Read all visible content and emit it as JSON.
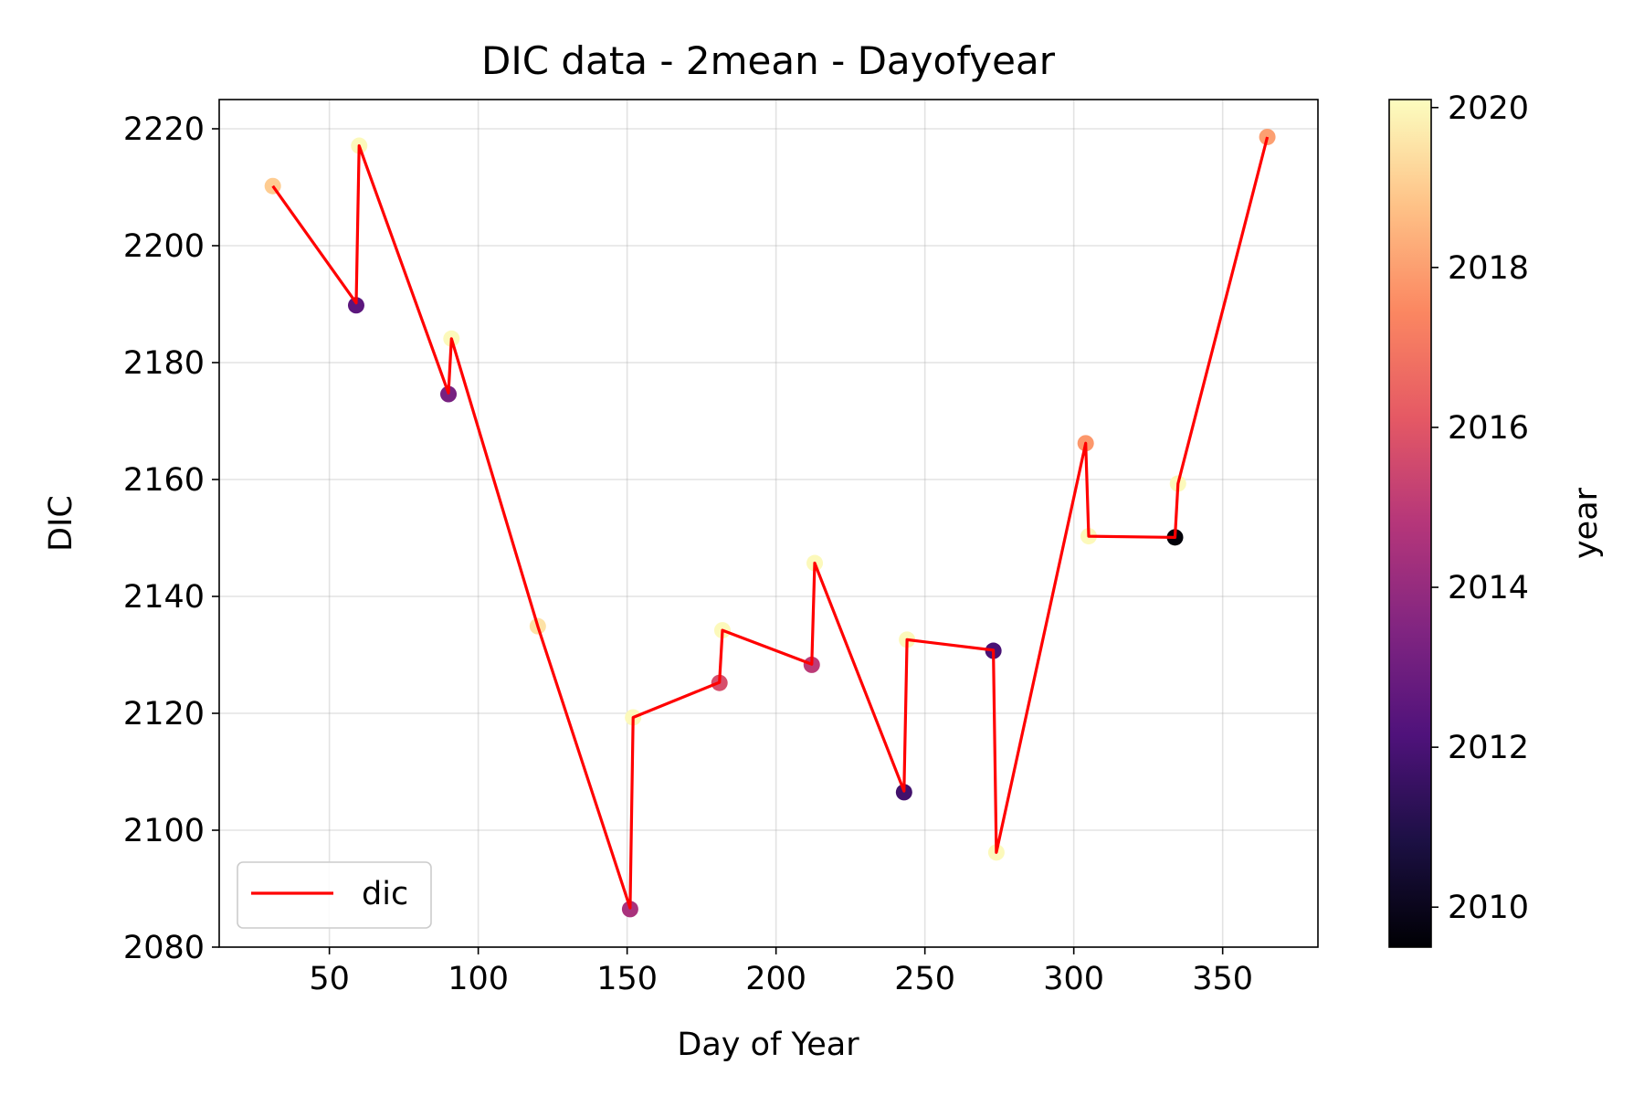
{
  "chart_data": {
    "type": "line",
    "title": "DIC data - 2mean - Dayofyear",
    "xlabel": "Day of Year",
    "ylabel": "DIC",
    "xlim": [
      13,
      382
    ],
    "ylim": [
      2080,
      2225
    ],
    "x_ticks": [
      50,
      100,
      150,
      200,
      250,
      300,
      350
    ],
    "y_ticks": [
      2080,
      2100,
      2120,
      2140,
      2160,
      2180,
      2200,
      2220
    ],
    "grid": true,
    "legend": {
      "location": "lower-left",
      "entries": [
        "dic"
      ]
    },
    "line_series": {
      "name": "dic",
      "color": "#ff0000",
      "x": [
        31,
        59,
        60,
        90,
        91,
        120,
        151,
        152,
        181,
        182,
        212,
        213,
        243,
        244,
        273,
        274,
        304,
        305,
        334,
        335,
        365
      ],
      "y": [
        2210.2,
        2190.2,
        2217.1,
        2174.8,
        2184.1,
        2134.9,
        2086.7,
        2119.3,
        2125.3,
        2134.2,
        2128.4,
        2145.7,
        2106.7,
        2132.6,
        2130.8,
        2096.2,
        2166.2,
        2150.3,
        2150.1,
        2159.3,
        2218.6
      ]
    },
    "scatter_series": {
      "colorby": "year",
      "x": [
        31,
        59,
        60,
        90,
        91,
        120,
        151,
        152,
        181,
        182,
        212,
        213,
        243,
        244,
        273,
        274,
        304,
        305,
        334,
        335,
        365
      ],
      "y": [
        2210.2,
        2189.8,
        2217.1,
        2174.6,
        2184.1,
        2134.9,
        2086.5,
        2119.3,
        2125.2,
        2134.2,
        2128.3,
        2145.7,
        2106.5,
        2132.6,
        2130.7,
        2096.2,
        2166.2,
        2150.3,
        2150.1,
        2159.3,
        2218.6
      ],
      "year": [
        2019,
        2012.5,
        2020,
        2013.2,
        2020,
        2019.5,
        2014.5,
        2020,
        2015.7,
        2020,
        2015,
        2020,
        2011.8,
        2020,
        2012,
        2020,
        2017.8,
        2020,
        2009.6,
        2020,
        2018
      ]
    },
    "colorbar": {
      "label": "year",
      "colormap": "magma",
      "range": [
        2009.5,
        2020.1
      ],
      "ticks": [
        2010,
        2012,
        2014,
        2016,
        2018,
        2020
      ]
    }
  }
}
